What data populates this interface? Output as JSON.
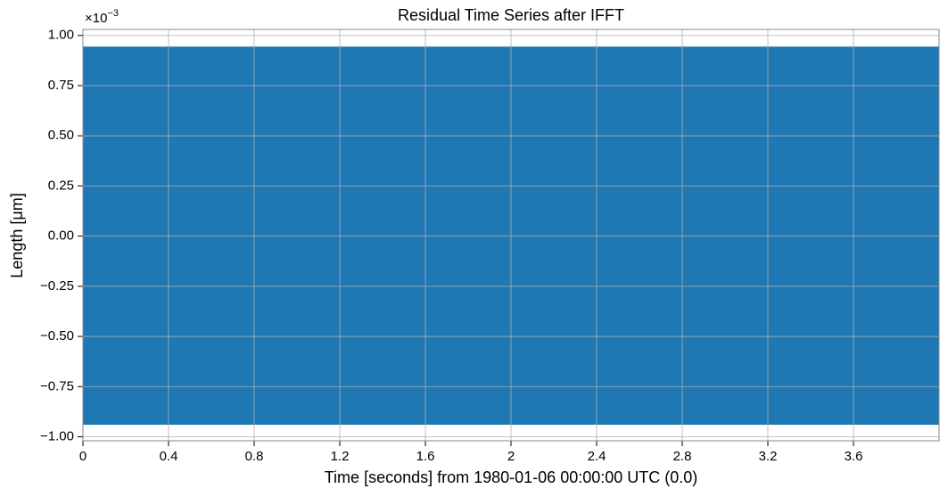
{
  "chart_data": {
    "type": "band",
    "title": "Residual Time Series after IFFT",
    "xlabel": "Time [seconds] from 1980-01-06 00:00:00 UTC (0.0)",
    "ylabel": "Length [μm]",
    "y_offset": {
      "base": "×10",
      "exponent": "−3"
    },
    "series": [
      {
        "color": "#1f77b4",
        "x": [
          0,
          4
        ],
        "upper": [
          0.000942,
          0.000942
        ],
        "lower": [
          -0.000938,
          -0.000938
        ]
      }
    ],
    "xlim": [
      0,
      4
    ],
    "ylim": [
      -0.00102,
      0.00103
    ],
    "xticks": [
      0,
      0.4,
      0.8,
      1.2,
      1.6,
      2,
      2.4,
      2.8,
      3.2,
      3.6
    ],
    "yticks": [
      {
        "value": -0.001,
        "label": "−1.00"
      },
      {
        "value": -0.00075,
        "label": "−0.75"
      },
      {
        "value": -0.0005,
        "label": "−0.50"
      },
      {
        "value": -0.00025,
        "label": "−0.25"
      },
      {
        "value": 0,
        "label": "0.00"
      },
      {
        "value": 0.00025,
        "label": "0.25"
      },
      {
        "value": 0.0005,
        "label": "0.50"
      },
      {
        "value": 0.00075,
        "label": "0.75"
      },
      {
        "value": 0.001,
        "label": "1.00"
      }
    ],
    "grid": true
  }
}
